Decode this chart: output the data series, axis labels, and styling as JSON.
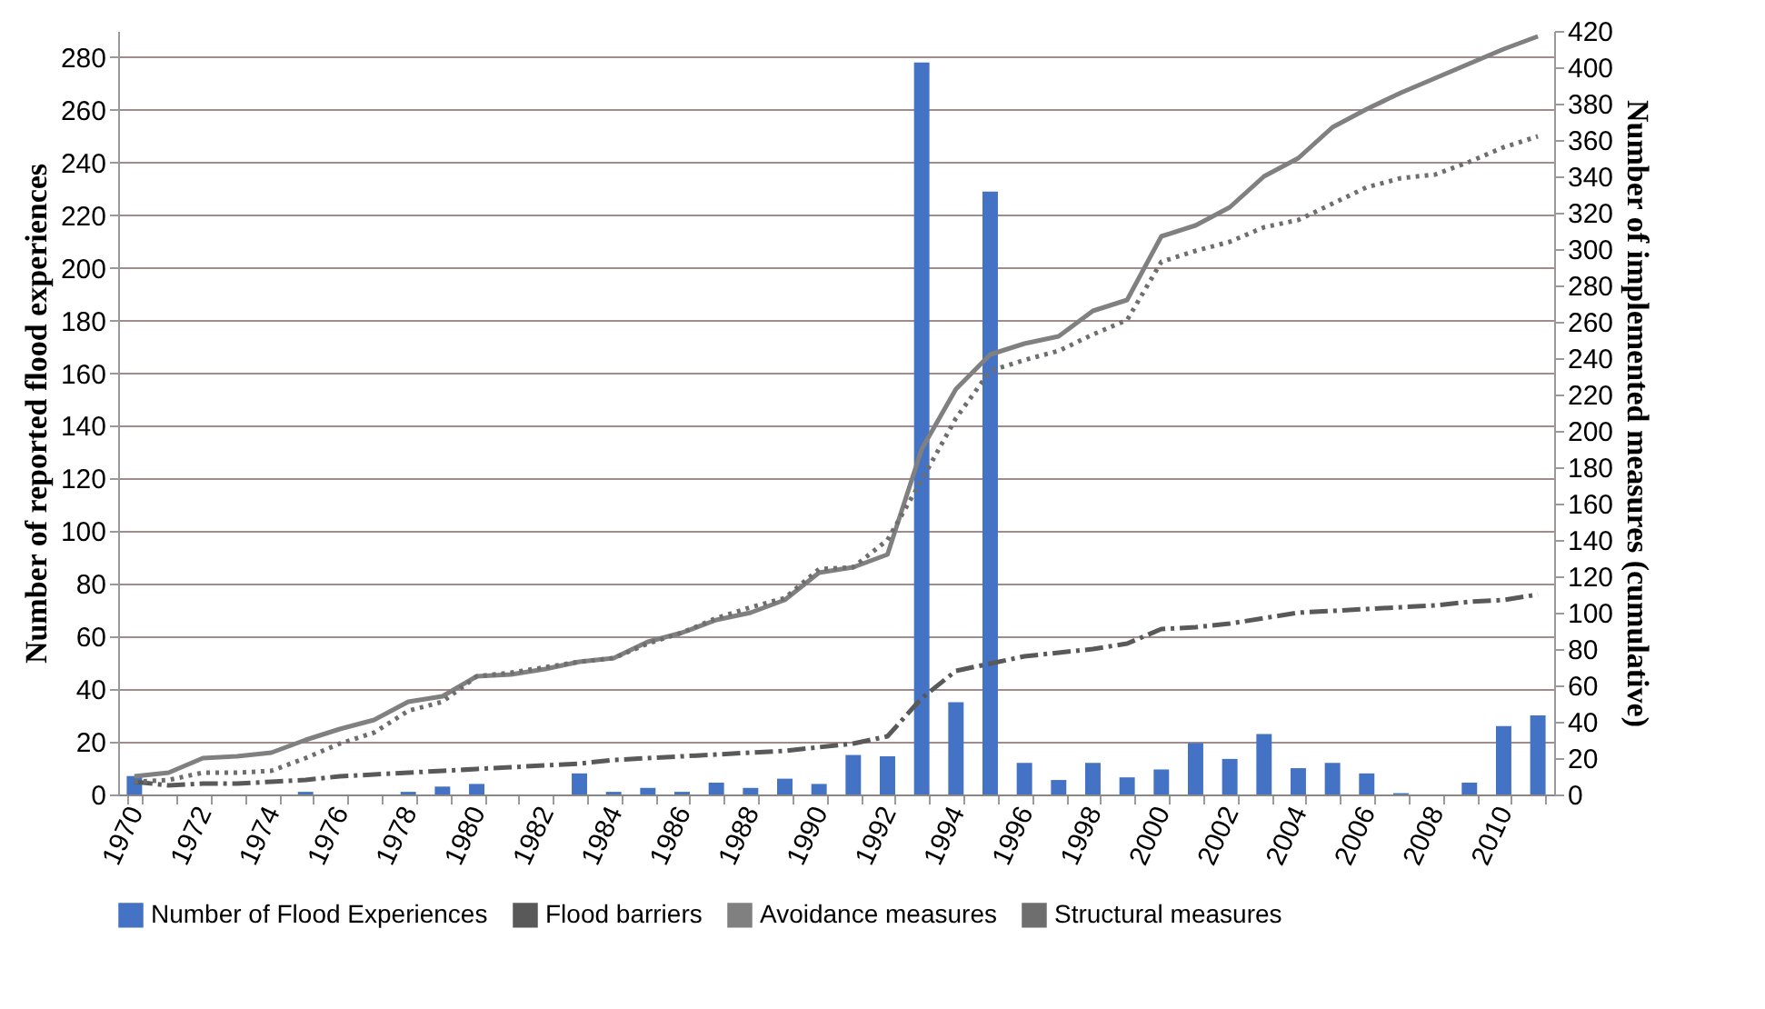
{
  "chart_data": {
    "type": "bar",
    "xlabel": null,
    "ylabel": "Number of reported flood experiences",
    "y2label": "Number of implemented measures (cumulative)",
    "categories": [
      "1970",
      null,
      "1972",
      null,
      "1974",
      null,
      "1976",
      null,
      "1978",
      null,
      "1980",
      null,
      "1982",
      null,
      "1984",
      null,
      "1986",
      null,
      "1988",
      null,
      "1990",
      null,
      "1992",
      null,
      "1994",
      null,
      "1996",
      null,
      "1998",
      null,
      "2000",
      null,
      "2002",
      null,
      "2004",
      null,
      "2006",
      null,
      "2008",
      null,
      "2010",
      null
    ],
    "ylim": [
      0,
      290
    ],
    "yticks": [
      0,
      20,
      40,
      60,
      80,
      100,
      120,
      140,
      160,
      180,
      200,
      220,
      240,
      260,
      280
    ],
    "y2lim": [
      0,
      420
    ],
    "y2ticks": [
      0,
      20,
      40,
      60,
      80,
      100,
      120,
      140,
      160,
      180,
      200,
      220,
      240,
      260,
      280,
      300,
      320,
      340,
      360,
      380,
      400,
      420
    ],
    "grid": "y",
    "legend": "bottom",
    "series": [
      {
        "name": "Number of Flood Experiences",
        "color": "#4472c4",
        "values": [
          7,
          0,
          0,
          0,
          0,
          1,
          0,
          0,
          1,
          3,
          4,
          0,
          0,
          8,
          1,
          2.5,
          1,
          4.5,
          2.5,
          6,
          4,
          15,
          14.5,
          278,
          35,
          229,
          12,
          5.5,
          12,
          6.5,
          9.5,
          19.5,
          13.5,
          23,
          10,
          12,
          8,
          0.5,
          0,
          4.5,
          26,
          30
        ]
      },
      {
        "name": "Flood barriers",
        "type": "line",
        "axis": "y2",
        "line_style": "dashed",
        "color": "#595959",
        "values": [
          7,
          5,
          6,
          6,
          7,
          8,
          10,
          11,
          12,
          13,
          14,
          15,
          16,
          17,
          19,
          20,
          21,
          22,
          23,
          24,
          26,
          28,
          32,
          53,
          68,
          72,
          76,
          78,
          80,
          83,
          91,
          92,
          94,
          97,
          100,
          101,
          102,
          103,
          104,
          106,
          107,
          110
        ]
      },
      {
        "name": "Avoidance measures",
        "type": "line",
        "axis": "y2",
        "line_style": "solid",
        "color": "#808080",
        "values": [
          10,
          12,
          20,
          21,
          23,
          30,
          36,
          41,
          51,
          54,
          65,
          66,
          69,
          73,
          75,
          84,
          89,
          96,
          100,
          107,
          122,
          125,
          132,
          190,
          223,
          242,
          248,
          252,
          266,
          272,
          307,
          313,
          323,
          340,
          350,
          367,
          377,
          386,
          394,
          402,
          410,
          417
        ]
      },
      {
        "name": "Structural measures",
        "type": "line",
        "axis": "y2",
        "line_style": "dotted",
        "color": "#6e6e6e",
        "values": [
          7,
          8,
          12,
          12,
          13,
          20,
          28,
          34,
          46,
          51,
          65,
          67,
          70,
          73,
          75,
          83,
          89,
          97,
          103,
          108,
          124,
          125,
          140,
          173,
          207,
          233,
          239,
          244,
          253,
          261,
          293,
          299,
          304,
          312,
          316,
          325,
          334,
          339,
          341,
          348,
          356,
          362
        ]
      }
    ]
  }
}
